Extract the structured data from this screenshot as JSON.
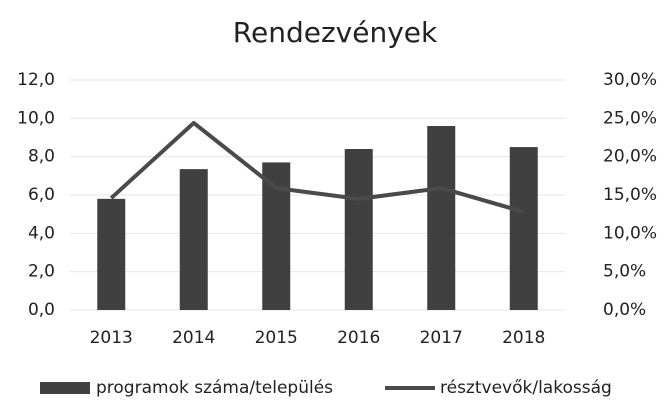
{
  "chart_data": {
    "type": "bar-line",
    "title": "Rendezvények",
    "categories": [
      "2013",
      "2014",
      "2015",
      "2016",
      "2017",
      "2018"
    ],
    "series": [
      {
        "name": "programok száma/település",
        "color": "#404040",
        "type": "bar",
        "values": [
          5.8,
          7.35,
          7.7,
          8.4,
          9.6,
          8.5
        ]
      },
      {
        "name": "résztvevők/lakosság",
        "color": "#4a4a4a",
        "type": "line",
        "axis": "y2",
        "values": [
          14.6,
          24.4,
          15.9,
          14.5,
          15.9,
          12.8
        ]
      }
    ],
    "ylim": [
      0,
      12
    ],
    "yticks": [
      {
        "value": 0,
        "label": "0,0"
      },
      {
        "value": 2,
        "label": "2,0"
      },
      {
        "value": 4,
        "label": "4,0"
      },
      {
        "value": 6,
        "label": "6,0"
      },
      {
        "value": 8,
        "label": "8,0"
      },
      {
        "value": 10,
        "label": "10,0"
      },
      {
        "value": 12,
        "label": "12,0"
      }
    ],
    "y2lim": [
      0,
      30
    ],
    "y2ticks": [
      {
        "value": 0,
        "label": "0,0%"
      },
      {
        "value": 5,
        "label": "5,0%"
      },
      {
        "value": 10,
        "label": "10,0%"
      },
      {
        "value": 15,
        "label": "15,0%"
      },
      {
        "value": 20,
        "label": "20,0%"
      },
      {
        "value": 25,
        "label": "25,0%"
      },
      {
        "value": 30,
        "label": "30,0%"
      }
    ],
    "grid": true,
    "legend": "bottom"
  }
}
